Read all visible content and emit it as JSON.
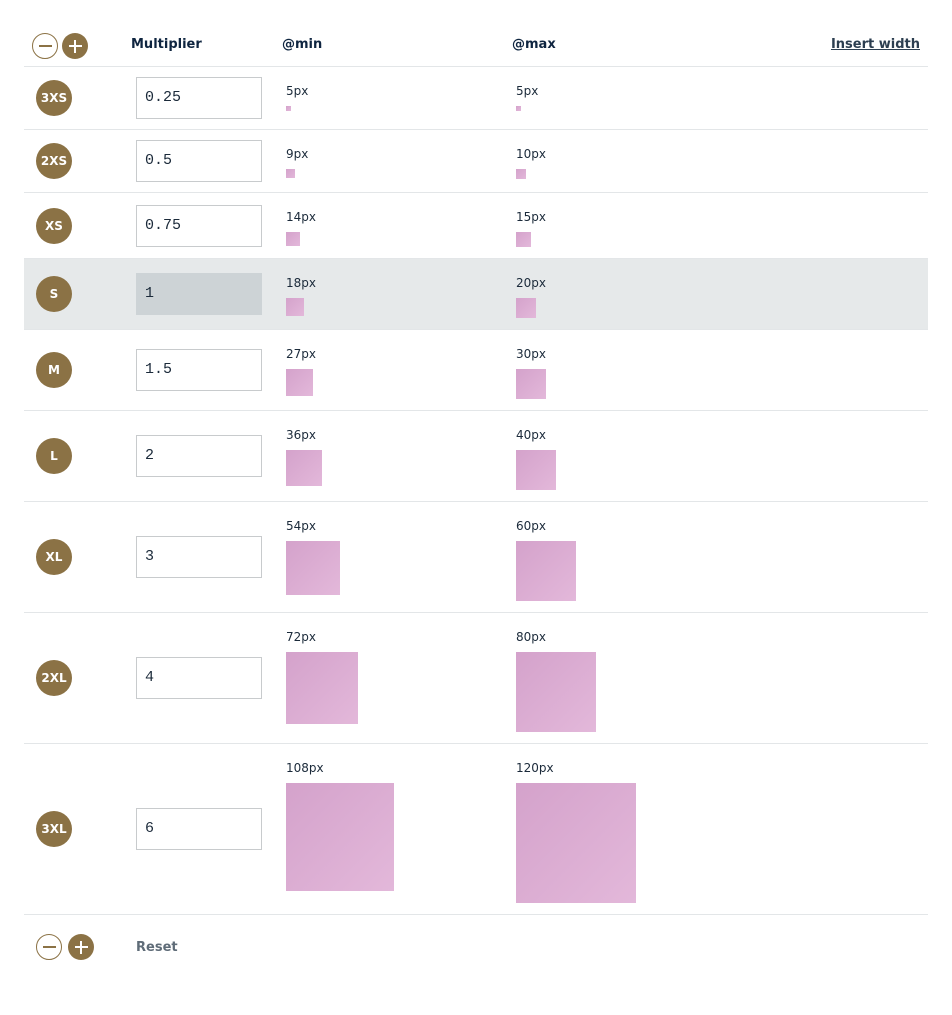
{
  "header": {
    "multiplier": "Multiplier",
    "min": "@min",
    "max": "@max",
    "insert_width": "Insert width"
  },
  "footer": {
    "reset": "Reset"
  },
  "colors": {
    "accent": "#8b7245",
    "swatch": "#d4a2cb",
    "active_row": "#e6e9ea"
  },
  "rows": [
    {
      "label": "3XS",
      "multiplier": "0.25",
      "min": "5px",
      "max": "5px"
    },
    {
      "label": "2XS",
      "multiplier": "0.5",
      "min": "9px",
      "max": "10px"
    },
    {
      "label": "XS",
      "multiplier": "0.75",
      "min": "14px",
      "max": "15px"
    },
    {
      "label": "S",
      "multiplier": "1",
      "min": "18px",
      "max": "20px",
      "active": true
    },
    {
      "label": "M",
      "multiplier": "1.5",
      "min": "27px",
      "max": "30px"
    },
    {
      "label": "L",
      "multiplier": "2",
      "min": "36px",
      "max": "40px"
    },
    {
      "label": "XL",
      "multiplier": "3",
      "min": "54px",
      "max": "60px"
    },
    {
      "label": "2XL",
      "multiplier": "4",
      "min": "72px",
      "max": "80px"
    },
    {
      "label": "3XL",
      "multiplier": "6",
      "min": "108px",
      "max": "120px"
    }
  ]
}
